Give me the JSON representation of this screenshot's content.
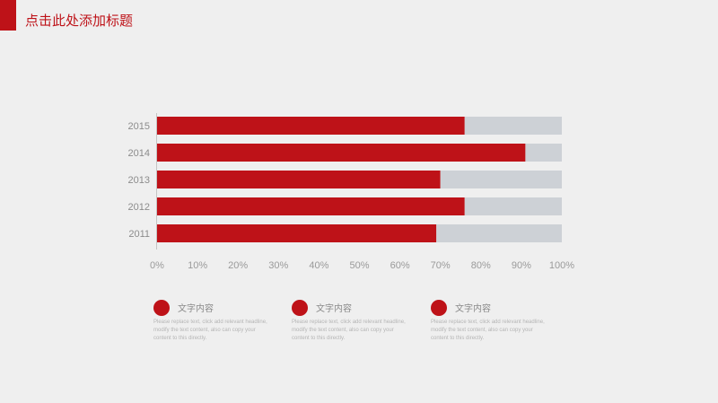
{
  "slide": {
    "title": "点击此处添加标题",
    "accent_color": "#be1218"
  },
  "chart_data": {
    "type": "bar",
    "orientation": "horizontal",
    "stacked_percent": true,
    "categories": [
      "2015",
      "2014",
      "2013",
      "2012",
      "2011"
    ],
    "series": [
      {
        "values": [
          76,
          91,
          70,
          76,
          69
        ],
        "color": "#be1218"
      },
      {
        "values": [
          24,
          9,
          30,
          24,
          31
        ],
        "color": "#cdd1d6"
      }
    ],
    "x_ticks": [
      "0%",
      "10%",
      "20%",
      "30%",
      "40%",
      "50%",
      "60%",
      "70%",
      "80%",
      "90%",
      "100%"
    ],
    "xlim": [
      0,
      100
    ],
    "title": "",
    "xlabel": "",
    "ylabel": "",
    "grid": false,
    "legend": "none"
  },
  "legend_items": [
    {
      "title": "文字内容",
      "description": "Please replace text, click add relevant headline, modify the text content, also can copy your content to this directly."
    },
    {
      "title": "文字内容",
      "description": "Please replace text, click add relevant headline, modify the text content, also can copy your content to this directly."
    },
    {
      "title": "文字内容",
      "description": "Please replace text, click add relevant headline, modify the text content, also can copy your content to this directly."
    }
  ]
}
